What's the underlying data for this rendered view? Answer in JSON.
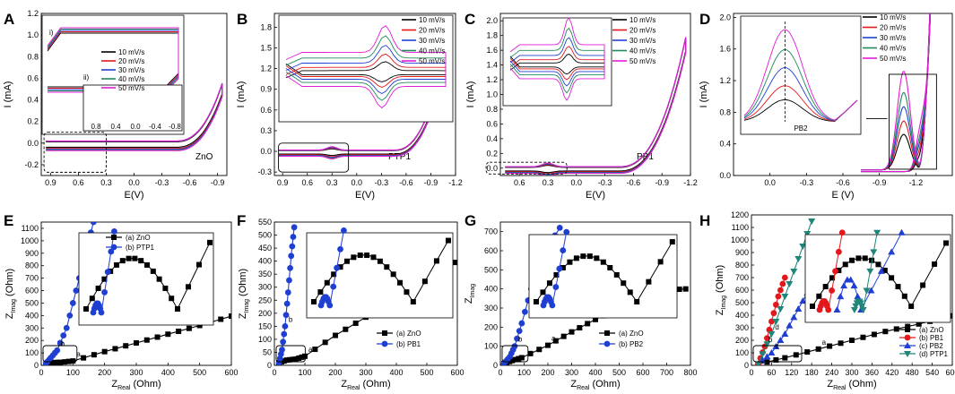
{
  "chart_data": [
    {
      "id": "A",
      "type": "line",
      "panel_label": "A",
      "annotation": "ZnO",
      "xlabel": "E(V)",
      "ylabel": "I (mA)",
      "xlim": [
        1.0,
        -1.0
      ],
      "ylim": [
        -0.3,
        1.2
      ],
      "xticks": [
        "0.9",
        "0.6",
        "0.3",
        "0.0",
        "-0.3",
        "-0.6",
        "-0.9"
      ],
      "yticks": [
        "-0.2",
        "0.0",
        "0.2",
        "0.4",
        "0.6",
        "0.8",
        "1.0",
        "1.2"
      ],
      "series": [
        {
          "name": "10 mV/s",
          "color": "#000000"
        },
        {
          "name": "20 mV/s",
          "color": "#e4181c"
        },
        {
          "name": "30 mV/s",
          "color": "#1f3fd2"
        },
        {
          "name": "40 mV/s",
          "color": "#1f8a5a"
        },
        {
          "name": "50 mV/s",
          "color": "#e21ad6"
        }
      ],
      "inset": {
        "labels": [
          "i)",
          "ii)"
        ],
        "xticks": [
          "0.8",
          "0.4",
          "0.0",
          "-0.4",
          "-0.8"
        ]
      }
    },
    {
      "id": "B",
      "type": "line",
      "panel_label": "B",
      "annotation": "PTP1",
      "xlabel": "E(V)",
      "ylabel": "I (mA)",
      "xlim": [
        1.0,
        -1.2
      ],
      "ylim": [
        -0.35,
        2.0
      ],
      "xticks": [
        "0.9",
        "0.6",
        "0.3",
        "0.0",
        "-0.3",
        "-0.6",
        "-0.9",
        "-1.2"
      ],
      "yticks": [
        "-0.3",
        "0.0",
        "0.3",
        "0.6",
        "0.9",
        "1.2",
        "1.5",
        "1.8"
      ],
      "series": [
        {
          "name": "10 mV/s",
          "color": "#000000"
        },
        {
          "name": "20 mV/s",
          "color": "#e4181c"
        },
        {
          "name": "30 mV/s",
          "color": "#1f3fd2"
        },
        {
          "name": "40 mV/s",
          "color": "#1f8a5a"
        },
        {
          "name": "50 mV/s",
          "color": "#e21ad6"
        }
      ]
    },
    {
      "id": "C",
      "type": "line",
      "panel_label": "C",
      "annotation": "PB1",
      "xlabel": "E(V)",
      "ylabel": "I (mA)",
      "xlim": [
        0.8,
        -1.2
      ],
      "ylim": [
        -0.1,
        2.1
      ],
      "xticks": [
        "0.6",
        "0.3",
        "0.0",
        "-0.3",
        "-0.6",
        "-0.9",
        "-1.2"
      ],
      "yticks": [
        "0.0",
        "0.2",
        "0.4",
        "0.6",
        "0.8",
        "1.0",
        "1.2",
        "1.4",
        "1.6",
        "1.8",
        "2.0"
      ],
      "series": [
        {
          "name": "10 mV/s",
          "color": "#000000"
        },
        {
          "name": "20 mV/s",
          "color": "#e4181c"
        },
        {
          "name": "30 mV/s",
          "color": "#1f3fd2"
        },
        {
          "name": "40 mV/s",
          "color": "#1f8a5a"
        },
        {
          "name": "50 mV/s",
          "color": "#e21ad6"
        }
      ]
    },
    {
      "id": "D",
      "type": "line",
      "panel_label": "D",
      "annotation": "PB2",
      "xlabel": "E  (V)",
      "ylabel": "I (mA)",
      "xlim": [
        0.3,
        -1.5
      ],
      "ylim": [
        0.0,
        2.05
      ],
      "xticks": [
        "0.0",
        "-0.3",
        "-0.6",
        "-0.9",
        "-1.2"
      ],
      "yticks": [
        "0.0",
        "0.4",
        "0.8",
        "1.2",
        "1.6",
        "2.0"
      ],
      "peak_heights_mA": [
        0.45,
        0.62,
        0.8,
        0.98,
        1.25
      ],
      "series": [
        {
          "name": "10 mV/s",
          "color": "#000000"
        },
        {
          "name": "20 mV/s",
          "color": "#e4181c"
        },
        {
          "name": "30 mV/s",
          "color": "#1f3fd2"
        },
        {
          "name": "40 mV/s",
          "color": "#1f8a5a"
        },
        {
          "name": "50 mV/s",
          "color": "#e21ad6"
        }
      ]
    },
    {
      "id": "E",
      "type": "scatter",
      "panel_label": "E",
      "xlabel_main": "Z",
      "xlabel_sub": "Real",
      "xlabel_unit": "(Ohm)",
      "ylabel_main": "Z",
      "ylabel_sub": "Imag",
      "ylabel_unit": "(Ohm)",
      "xlim": [
        0,
        600
      ],
      "ylim": [
        0,
        1150
      ],
      "xticks": [
        "0",
        "100",
        "200",
        "300",
        "400",
        "500",
        "600"
      ],
      "yticks": [
        "0",
        "100",
        "200",
        "300",
        "400",
        "500",
        "600",
        "700",
        "800",
        "900",
        "1000",
        "1100"
      ],
      "series": [
        {
          "name": "(a) ZnO",
          "curve": "a",
          "color": "#000000",
          "marker": "square",
          "x": [
            15,
            40,
            60,
            100,
            200,
            300,
            400,
            500,
            600
          ],
          "y": [
            10,
            22,
            24,
            35,
            110,
            180,
            250,
            320,
            395
          ]
        },
        {
          "name": "(b) PTP1",
          "curve": "b",
          "color": "#1f3fd2",
          "marker": "circle",
          "x": [
            15,
            30,
            50,
            80,
            110,
            140,
            165
          ],
          "y": [
            15,
            60,
            120,
            300,
            600,
            900,
            1150
          ]
        }
      ]
    },
    {
      "id": "F",
      "type": "scatter",
      "panel_label": "F",
      "xlabel_main": "Z",
      "xlabel_sub": "Real",
      "xlabel_unit": "(Ohm)",
      "ylabel_main": "Z",
      "ylabel_sub": "Imag",
      "ylabel_unit": "(Ohm)",
      "xlim": [
        0,
        600
      ],
      "ylim": [
        0,
        550
      ],
      "xticks": [
        "0",
        "100",
        "200",
        "300",
        "400",
        "500",
        "600"
      ],
      "yticks": [
        "0",
        "50",
        "100",
        "150",
        "200",
        "250",
        "300",
        "350",
        "400",
        "450",
        "500",
        "550"
      ],
      "series": [
        {
          "name": "(a) ZnO",
          "curve": "a",
          "color": "#000000",
          "marker": "square",
          "x": [
            15,
            40,
            70,
            100,
            200,
            300,
            400,
            500,
            590
          ],
          "y": [
            10,
            20,
            24,
            35,
            115,
            185,
            255,
            325,
            395
          ]
        },
        {
          "name": "(b) PB1",
          "curve": "b",
          "color": "#1f3fd2",
          "marker": "circle",
          "x": [
            15,
            25,
            35,
            45,
            55,
            65
          ],
          "y": [
            10,
            60,
            150,
            280,
            420,
            530
          ]
        }
      ]
    },
    {
      "id": "G",
      "type": "scatter",
      "panel_label": "G",
      "xlabel_main": "Z",
      "xlabel_sub": "Real",
      "xlabel_unit": "(Ohm)",
      "ylabel_main": "Z",
      "ylabel_sub": "Imag",
      "ylabel_unit": "",
      "xlim": [
        0,
        800
      ],
      "ylim": [
        0,
        750
      ],
      "xticks": [
        "0",
        "100",
        "200",
        "300",
        "400",
        "500",
        "600",
        "700",
        "800"
      ],
      "yticks": [
        "0",
        "100",
        "200",
        "300",
        "400",
        "500",
        "600",
        "700"
      ],
      "series": [
        {
          "name": "(a) ZnO",
          "curve": "a",
          "color": "#000000",
          "marker": "square",
          "x": [
            15,
            50,
            90,
            200,
            300,
            400,
            500,
            600,
            700,
            780
          ],
          "y": [
            10,
            25,
            40,
            105,
            175,
            240,
            300,
            350,
            395,
            400
          ]
        },
        {
          "name": "(b) PB2",
          "curve": "b",
          "color": "#1f3fd2",
          "marker": "circle",
          "x": [
            15,
            40,
            60,
            90,
            130,
            190,
            250
          ],
          "y": [
            10,
            45,
            100,
            220,
            400,
            600,
            720
          ]
        }
      ]
    },
    {
      "id": "H",
      "type": "scatter",
      "panel_label": "H",
      "xlabel_main": "Z",
      "xlabel_sub": "Real",
      "xlabel_unit": "(Ohm)",
      "ylabel_main": "Z",
      "ylabel_sub": "Imag",
      "ylabel_unit": "(Ohm)",
      "xlim": [
        0,
        600
      ],
      "ylim": [
        0,
        1200
      ],
      "xticks": [
        "0",
        "60",
        "120",
        "180",
        "240",
        "300",
        "360",
        "420",
        "480",
        "540",
        "600"
      ],
      "yticks": [
        "0",
        "100",
        "200",
        "300",
        "400",
        "500",
        "600",
        "700",
        "800",
        "900",
        "1000",
        "1100",
        "1200"
      ],
      "series": [
        {
          "name": "(a) ZnO",
          "curve": "a",
          "color": "#000000",
          "marker": "square",
          "x": [
            20,
            100,
            200,
            300,
            400,
            500,
            600
          ],
          "y": [
            10,
            60,
            130,
            200,
            270,
            330,
            395
          ]
        },
        {
          "name": "(b) PB1",
          "curve": "b",
          "color": "#e4181c",
          "marker": "circle",
          "x": [
            20,
            40,
            60,
            80,
            100
          ],
          "y": [
            10,
            150,
            350,
            550,
            700
          ]
        },
        {
          "name": "(c) PB2",
          "curve": "c",
          "color": "#1f3fd2",
          "marker": "triangle",
          "x": [
            20,
            60,
            100,
            140,
            180
          ],
          "y": [
            10,
            100,
            250,
            450,
            640
          ]
        },
        {
          "name": "(d) PTP1",
          "curve": "d",
          "color": "#20867a",
          "marker": "triangle-down",
          "x": [
            20,
            60,
            100,
            140,
            180
          ],
          "y": [
            10,
            250,
            550,
            850,
            1150
          ]
        }
      ]
    }
  ]
}
